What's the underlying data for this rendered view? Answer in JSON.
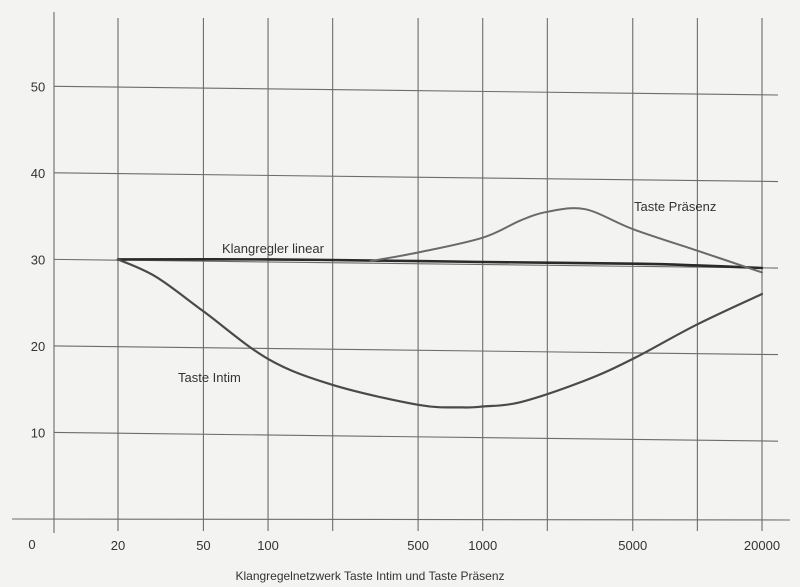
{
  "chart_data": {
    "type": "line",
    "title": "",
    "caption": "Klangregelnetzwerk   Taste Intim und Taste Präsenz",
    "xlabel": "",
    "ylabel": "",
    "x_scale": "log",
    "xlim": [
      20,
      20000
    ],
    "ylim": [
      0,
      55
    ],
    "x_tick_labels": [
      "20",
      "50",
      "100",
      "500",
      "1000",
      "5000",
      "20000"
    ],
    "y_tick_labels": [
      "0",
      "10",
      "20",
      "30",
      "40",
      "50"
    ],
    "x_grid": [
      20,
      50,
      100,
      200,
      500,
      1000,
      2000,
      5000,
      10000,
      20000
    ],
    "y_grid": [
      10,
      20,
      30,
      40,
      50
    ],
    "grid": true,
    "series": [
      {
        "name": "Klangregler linear",
        "color": "#2a2a2a",
        "x": [
          20,
          100,
          500,
          1000,
          5000,
          10000,
          20000
        ],
        "y": [
          30,
          30,
          29.8,
          29.7,
          29.5,
          29.3,
          29
        ]
      },
      {
        "name": "Taste Präsenz",
        "color": "#6a6a6a",
        "x": [
          300,
          500,
          1000,
          1500,
          2000,
          3000,
          5000,
          10000,
          20000
        ],
        "y": [
          29.8,
          30.8,
          32.5,
          34.5,
          35.5,
          35.8,
          33.5,
          31,
          28.5
        ]
      },
      {
        "name": "Taste Intim",
        "color": "#4a4a4a",
        "x": [
          20,
          30,
          50,
          100,
          200,
          500,
          800,
          1000,
          1500,
          3000,
          5000,
          10000,
          20000
        ],
        "y": [
          30,
          28,
          24,
          18.5,
          15.5,
          13.2,
          12.9,
          13,
          13.5,
          16,
          18.5,
          22.5,
          26
        ]
      }
    ]
  }
}
